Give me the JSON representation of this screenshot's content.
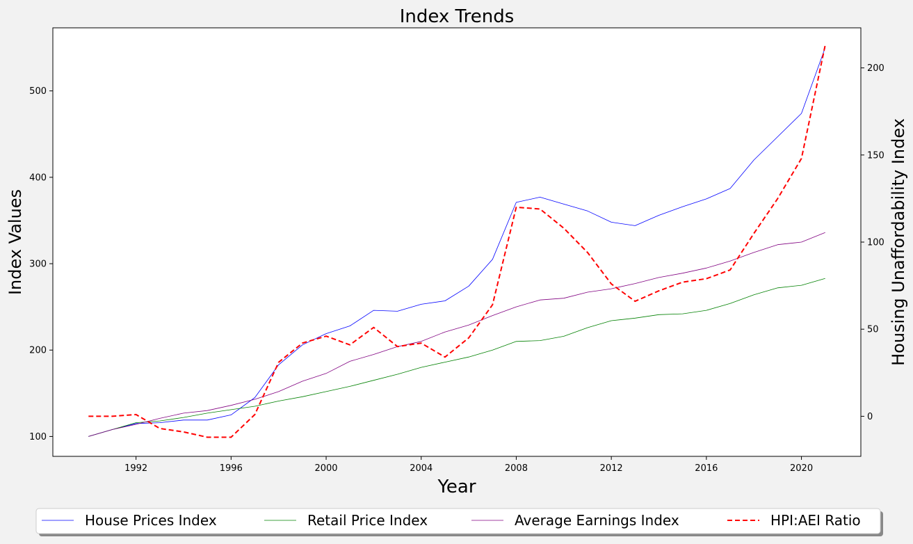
{
  "chart_data": {
    "type": "line",
    "title": "Index Trends",
    "xlabel": "Year",
    "ylabel": "Index Values",
    "y2label": "Housing Unaffordability Index",
    "xlim": [
      1988.5,
      2022.5
    ],
    "ylim": [
      77,
      573
    ],
    "y2lim": [
      -23,
      223
    ],
    "xticks": [
      1992,
      1996,
      2000,
      2004,
      2008,
      2012,
      2016,
      2020
    ],
    "yticks": [
      100,
      200,
      300,
      400,
      500
    ],
    "y2ticks": [
      0,
      50,
      100,
      150,
      200
    ],
    "grid": false,
    "legend_placement": "bottom-center",
    "x": [
      1990,
      1991,
      1992,
      1993,
      1994,
      1995,
      1996,
      1997,
      1998,
      1999,
      2000,
      2001,
      2002,
      2003,
      2004,
      2005,
      2006,
      2007,
      2008,
      2009,
      2010,
      2011,
      2012,
      2013,
      2014,
      2015,
      2016,
      2017,
      2018,
      2019,
      2020,
      2021
    ],
    "series": [
      {
        "name": "House Prices Index",
        "axis": "left",
        "color": "#0000ff",
        "style": "solid",
        "values": [
          100,
          108,
          115,
          116,
          119,
          119,
          125,
          145,
          183,
          206,
          219,
          228,
          246,
          245,
          253,
          257,
          274,
          305,
          371,
          377,
          369,
          361,
          348,
          344,
          356,
          366,
          375,
          387,
          420,
          447,
          474,
          550
        ]
      },
      {
        "name": "Retail Price Index",
        "axis": "left",
        "color": "#008000",
        "style": "solid",
        "values": [
          100,
          108,
          116,
          118,
          122,
          127,
          131,
          135,
          141,
          146,
          152,
          158,
          165,
          172,
          180,
          186,
          192,
          200,
          210,
          211,
          216,
          226,
          234,
          237,
          241,
          242,
          246,
          254,
          264,
          272,
          275,
          283
        ]
      },
      {
        "name": "Average Earnings Index",
        "axis": "left",
        "color": "#800080",
        "style": "solid",
        "values": [
          100,
          108,
          114,
          121,
          127,
          130,
          136,
          143,
          152,
          164,
          173,
          187,
          195,
          204,
          210,
          221,
          229,
          240,
          250,
          258,
          260,
          267,
          271,
          277,
          284,
          289,
          295,
          303,
          313,
          322,
          325,
          336
        ]
      },
      {
        "name": "HPI:AEI Ratio",
        "axis": "right",
        "color": "#ff0000",
        "style": "dashed",
        "values": [
          0,
          0,
          1,
          -7,
          -9,
          -12,
          -12,
          1,
          31,
          42,
          46,
          41,
          51,
          40,
          42,
          34,
          45,
          64,
          120,
          119,
          108,
          94,
          76,
          66,
          72,
          77,
          79,
          84,
          105,
          125,
          148,
          213
        ]
      }
    ]
  }
}
